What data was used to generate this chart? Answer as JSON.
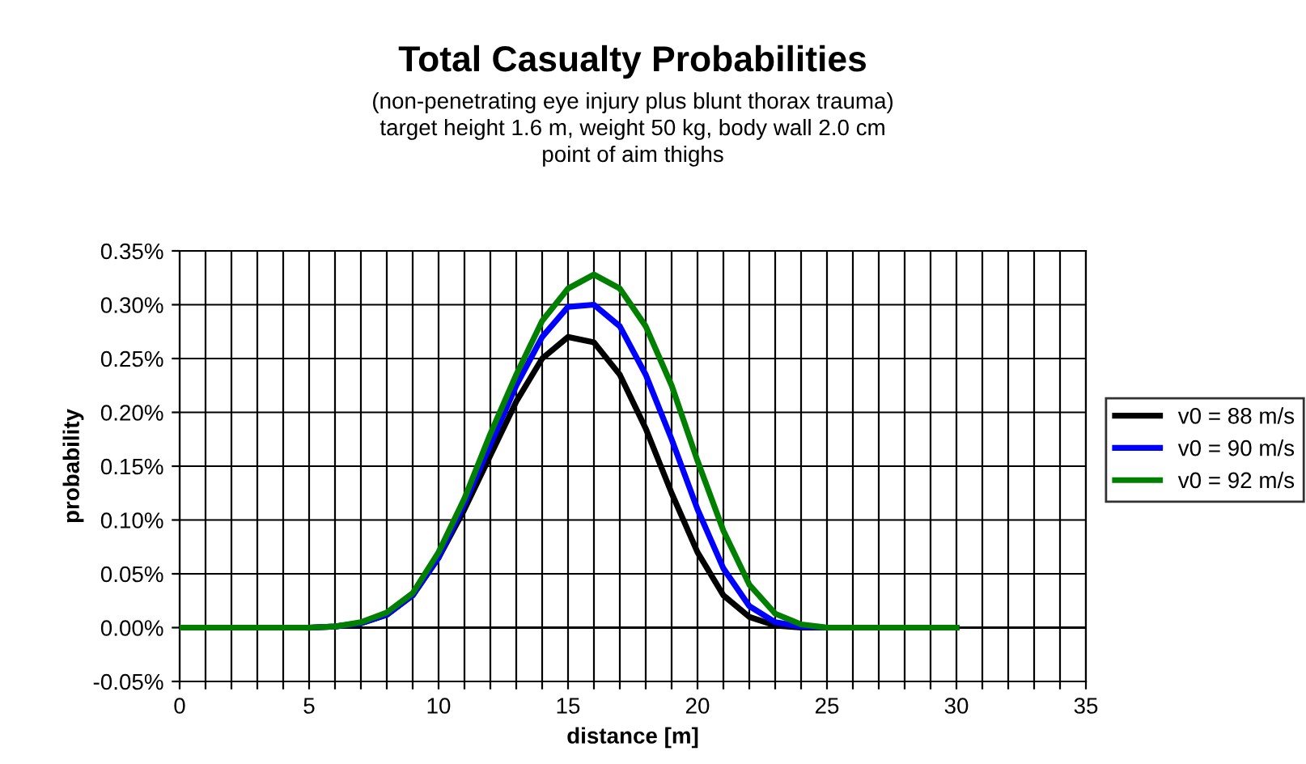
{
  "chart_data": {
    "type": "line",
    "title": "Total Casualty Probabilities",
    "subtitle": "(non-penetrating eye injury plus blunt thorax trauma)\ntarget height 1.6 m, weight 50 kg, body wall 2.0 cm\npoint of aim thighs",
    "xlabel": "distance [m]",
    "ylabel": "probability",
    "x": [
      0,
      1,
      2,
      3,
      4,
      5,
      6,
      7,
      8,
      9,
      10,
      11,
      12,
      13,
      14,
      15,
      16,
      17,
      18,
      19,
      20,
      21,
      22,
      23,
      24,
      25,
      26,
      27,
      28,
      29,
      30
    ],
    "series": [
      {
        "name": "v0 = 88 m/s",
        "color": "#000000",
        "values": [
          0,
          0,
          0,
          0,
          0,
          0,
          0.001,
          0.004,
          0.012,
          0.03,
          0.065,
          0.11,
          0.16,
          0.21,
          0.25,
          0.27,
          0.265,
          0.235,
          0.185,
          0.125,
          0.07,
          0.03,
          0.01,
          0.002,
          0,
          0,
          0,
          0,
          0,
          0,
          0
        ]
      },
      {
        "name": "v0 = 90 m/s",
        "color": "#0000ff",
        "values": [
          null,
          null,
          null,
          null,
          null,
          0,
          0.001,
          0.004,
          0.012,
          0.03,
          0.065,
          0.115,
          0.17,
          0.225,
          0.27,
          0.298,
          0.3,
          0.28,
          0.235,
          0.175,
          0.11,
          0.055,
          0.02,
          0.005,
          0.001,
          0,
          0,
          null,
          null,
          null,
          null
        ]
      },
      {
        "name": "v0 = 92 m/s",
        "color": "#007f00",
        "values": [
          0,
          0,
          0,
          0,
          0,
          0,
          0.001,
          0.005,
          0.014,
          0.032,
          0.07,
          0.12,
          0.18,
          0.235,
          0.285,
          0.315,
          0.328,
          0.315,
          0.28,
          0.225,
          0.155,
          0.09,
          0.04,
          0.013,
          0.003,
          0,
          0,
          0,
          0,
          0,
          0
        ]
      }
    ],
    "xlim": [
      0,
      35
    ],
    "xticks": [
      0,
      5,
      10,
      15,
      20,
      25,
      30,
      35,
      {
        "value": 1,
        "label": null
      },
      {
        "value": 2,
        "label": null
      },
      {
        "value": 3,
        "label": null
      },
      {
        "value": 4,
        "label": null
      },
      {
        "value": 6,
        "label": null
      },
      {
        "value": 7,
        "label": null
      },
      {
        "value": 8,
        "label": null
      },
      {
        "value": 9,
        "label": null
      },
      {
        "value": 11,
        "label": null
      },
      {
        "value": 12,
        "label": null
      },
      {
        "value": 13,
        "label": null
      },
      {
        "value": 14,
        "label": null
      },
      {
        "value": 16,
        "label": null
      },
      {
        "value": 17,
        "label": null
      },
      {
        "value": 18,
        "label": null
      },
      {
        "value": 19,
        "label": null
      },
      {
        "value": 21,
        "label": null
      },
      {
        "value": 22,
        "label": null
      },
      {
        "value": 23,
        "label": null
      },
      {
        "value": 24,
        "label": null
      },
      {
        "value": 26,
        "label": null
      },
      {
        "value": 27,
        "label": null
      },
      {
        "value": 28,
        "label": null
      },
      {
        "value": 29,
        "label": null
      },
      {
        "value": 31,
        "label": null
      },
      {
        "value": 32,
        "label": null
      },
      {
        "value": 33,
        "label": null
      },
      {
        "value": 34,
        "label": null
      }
    ],
    "ylim": [
      -0.05,
      0.35
    ],
    "yticks": [
      {
        "value": -0.05,
        "label": "-0.05%"
      },
      {
        "value": 0,
        "label": "0.00%"
      },
      {
        "value": 0.05,
        "label": "0.05%"
      },
      {
        "value": 0.1,
        "label": "0.10%"
      },
      {
        "value": 0.15,
        "label": "0.15%"
      },
      {
        "value": 0.2,
        "label": "0.20%"
      },
      {
        "value": 0.25,
        "label": "0.25%"
      },
      {
        "value": 0.3,
        "label": "0.30%"
      },
      {
        "value": 0.35,
        "label": "0.35%"
      }
    ],
    "grid": true,
    "legend": "right",
    "marker": "none",
    "line_style": "solid"
  }
}
